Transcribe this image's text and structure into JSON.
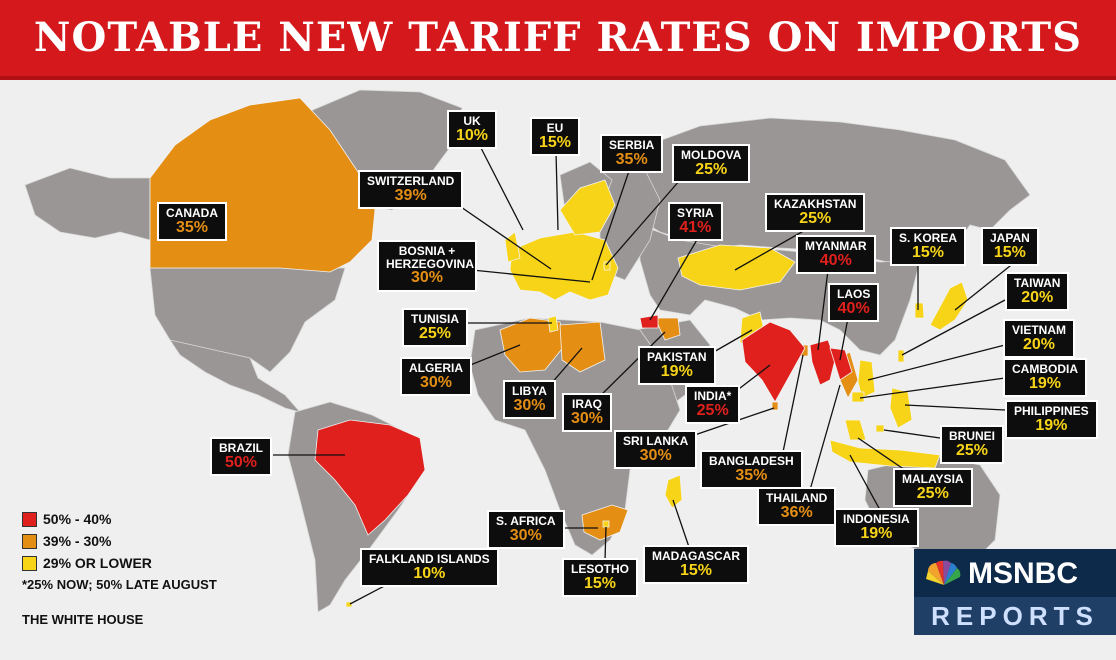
{
  "title": "NOTABLE NEW TARIFF RATES ON IMPORTS",
  "legend": [
    {
      "label": "50% - 40%",
      "color": "#e0201c"
    },
    {
      "label": "39% - 30%",
      "color": "#e48e14"
    },
    {
      "label": "29% OR LOWER",
      "color": "#f7d417"
    }
  ],
  "legend_note": "*25% NOW; 50% LATE AUGUST",
  "source": "THE WHITE HOUSE",
  "logo": {
    "name": "MSNBC",
    "subtitle": "REPORTS"
  },
  "colors": {
    "banner": "#d4181c",
    "land": "#9a9696",
    "ocean": "#efefef",
    "high": "#e0201c",
    "mid": "#e48e14",
    "low": "#f7d417"
  },
  "countries": [
    {
      "id": "uk",
      "name": "UK",
      "rate": "10%",
      "tier": "low"
    },
    {
      "id": "eu",
      "name": "EU",
      "rate": "15%",
      "tier": "low"
    },
    {
      "id": "serbia",
      "name": "SERBIA",
      "rate": "35%",
      "tier": "mid"
    },
    {
      "id": "moldova",
      "name": "MOLDOVA",
      "rate": "25%",
      "tier": "low"
    },
    {
      "id": "switzerland",
      "name": "SWITZERLAND",
      "rate": "39%",
      "tier": "mid"
    },
    {
      "id": "canada",
      "name": "CANADA",
      "rate": "35%",
      "tier": "mid"
    },
    {
      "id": "syria",
      "name": "SYRIA",
      "rate": "41%",
      "tier": "high"
    },
    {
      "id": "kazakhstan",
      "name": "KAZAKHSTAN",
      "rate": "25%",
      "tier": "low"
    },
    {
      "id": "bosnia",
      "name": "BOSNIA + HERZEGOVINA",
      "rate": "30%",
      "tier": "mid"
    },
    {
      "id": "myanmar",
      "name": "MYANMAR",
      "rate": "40%",
      "tier": "high"
    },
    {
      "id": "skorea",
      "name": "S. KOREA",
      "rate": "15%",
      "tier": "low"
    },
    {
      "id": "japan",
      "name": "JAPAN",
      "rate": "15%",
      "tier": "low"
    },
    {
      "id": "tunisia",
      "name": "TUNISIA",
      "rate": "25%",
      "tier": "low"
    },
    {
      "id": "laos",
      "name": "LAOS",
      "rate": "40%",
      "tier": "high"
    },
    {
      "id": "taiwan",
      "name": "TAIWAN",
      "rate": "20%",
      "tier": "low"
    },
    {
      "id": "vietnam",
      "name": "VIETNAM",
      "rate": "20%",
      "tier": "low"
    },
    {
      "id": "algeria",
      "name": "ALGERIA",
      "rate": "30%",
      "tier": "mid"
    },
    {
      "id": "pakistan",
      "name": "PAKISTAN",
      "rate": "19%",
      "tier": "low"
    },
    {
      "id": "cambodia",
      "name": "CAMBODIA",
      "rate": "19%",
      "tier": "low"
    },
    {
      "id": "libya",
      "name": "LIBYA",
      "rate": "30%",
      "tier": "mid"
    },
    {
      "id": "iraq",
      "name": "IRAQ",
      "rate": "30%",
      "tier": "mid"
    },
    {
      "id": "india",
      "name": "INDIA*",
      "rate": "25%",
      "tier": "high"
    },
    {
      "id": "philippines",
      "name": "PHILIPPINES",
      "rate": "19%",
      "tier": "low"
    },
    {
      "id": "brazil",
      "name": "BRAZIL",
      "rate": "50%",
      "tier": "high"
    },
    {
      "id": "srilanka",
      "name": "SRI LANKA",
      "rate": "30%",
      "tier": "mid"
    },
    {
      "id": "brunei",
      "name": "BRUNEI",
      "rate": "25%",
      "tier": "low"
    },
    {
      "id": "bangladesh",
      "name": "BANGLADESH",
      "rate": "35%",
      "tier": "mid"
    },
    {
      "id": "malaysia",
      "name": "MALAYSIA",
      "rate": "25%",
      "tier": "low"
    },
    {
      "id": "thailand",
      "name": "THAILAND",
      "rate": "36%",
      "tier": "mid"
    },
    {
      "id": "safrica",
      "name": "S. AFRICA",
      "rate": "30%",
      "tier": "mid"
    },
    {
      "id": "indonesia",
      "name": "INDONESIA",
      "rate": "19%",
      "tier": "low"
    },
    {
      "id": "falkland",
      "name": "FALKLAND ISLANDS",
      "rate": "10%",
      "tier": "low"
    },
    {
      "id": "lesotho",
      "name": "LESOTHO",
      "rate": "15%",
      "tier": "low"
    },
    {
      "id": "madagascar",
      "name": "MADAGASCAR",
      "rate": "15%",
      "tier": "low"
    }
  ]
}
